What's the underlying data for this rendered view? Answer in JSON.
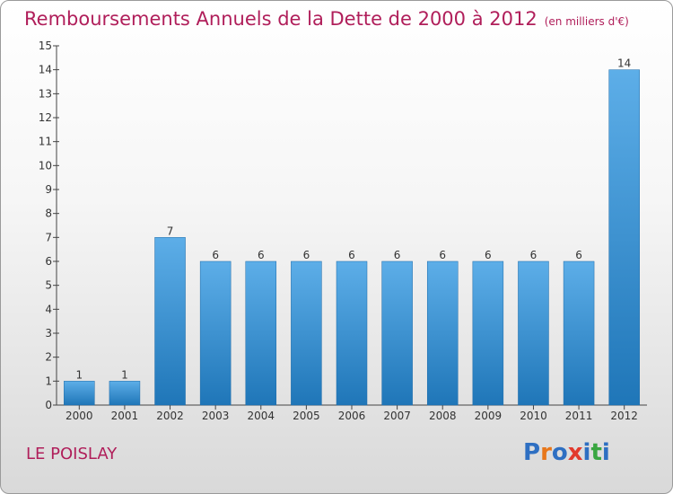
{
  "title": "Remboursements Annuels de la Dette de 2000 à 2012",
  "subtitle": "(en milliers d'€)",
  "commune": "LE POISLAY",
  "logo": {
    "text": "Proxiti",
    "colors": [
      "#2e6fc2",
      "#e8771a",
      "#2e6fc2",
      "#e23a2d",
      "#2e6fc2",
      "#3aa641",
      "#2e6fc2"
    ]
  },
  "colors": {
    "title": "#b01e5a",
    "bar_top": "#5daee8",
    "bar_bottom": "#1f76b8"
  },
  "chart_data": {
    "type": "bar",
    "categories": [
      "2000",
      "2001",
      "2002",
      "2003",
      "2004",
      "2005",
      "2006",
      "2007",
      "2008",
      "2009",
      "2010",
      "2011",
      "2012"
    ],
    "values": [
      1,
      1,
      7,
      6,
      6,
      6,
      6,
      6,
      6,
      6,
      6,
      6,
      14
    ],
    "ylim": [
      0,
      15
    ],
    "yticks": [
      0,
      1,
      2,
      3,
      4,
      5,
      6,
      7,
      8,
      9,
      10,
      11,
      12,
      13,
      14,
      15
    ],
    "grid": false,
    "data_labels": true
  }
}
